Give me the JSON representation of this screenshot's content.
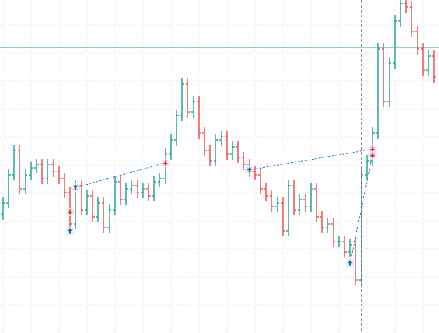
{
  "chart_data": {
    "type": "ohlc",
    "up_color": "#26a69a",
    "down_color": "#ef5350",
    "x": [
      0,
      1,
      2,
      3,
      4,
      5,
      6,
      7,
      8,
      9,
      10,
      11,
      12,
      13,
      14,
      15,
      16,
      17,
      18,
      19,
      20,
      21,
      22,
      23,
      24,
      25,
      26,
      27,
      28,
      29,
      30,
      31,
      32,
      33,
      34,
      35,
      36,
      37,
      38,
      39,
      40,
      41,
      42,
      43,
      44,
      45,
      46,
      47,
      48,
      49,
      50,
      51,
      52,
      53,
      54,
      55,
      56,
      57,
      58,
      59,
      60,
      61,
      62,
      63,
      64,
      65,
      66,
      67,
      68,
      69,
      70,
      71,
      72,
      73,
      74,
      75,
      76,
      77
    ],
    "open": [
      170,
      186,
      226,
      261,
      206,
      226,
      236,
      241,
      221,
      241,
      231,
      221,
      201,
      156,
      211,
      176,
      196,
      166,
      186,
      151,
      176,
      216,
      191,
      206,
      211,
      201,
      206,
      196,
      216,
      221,
      256,
      276,
      311,
      356,
      316,
      331,
      286,
      261,
      246,
      276,
      281,
      256,
      266,
      251,
      241,
      231,
      226,
      206,
      196,
      181,
      186,
      146,
      211,
      176,
      191,
      181,
      206,
      166,
      151,
      156,
      131,
      131,
      116,
      126,
      76,
      226,
      246,
      286,
      406,
      331,
      386,
      446,
      471,
      466,
      431,
      406,
      376,
      396
    ],
    "high": [
      194,
      234,
      269,
      269,
      234,
      244,
      249,
      249,
      249,
      249,
      239,
      229,
      209,
      219,
      219,
      204,
      204,
      194,
      194,
      184,
      224,
      224,
      214,
      219,
      219,
      214,
      214,
      224,
      229,
      264,
      284,
      319,
      364,
      364,
      339,
      339,
      294,
      269,
      284,
      289,
      289,
      274,
      274,
      259,
      249,
      239,
      234,
      214,
      204,
      194,
      194,
      219,
      219,
      199,
      199,
      214,
      214,
      174,
      164,
      164,
      139,
      139,
      134,
      134,
      234,
      254,
      294,
      414,
      414,
      394,
      454,
      476,
      476,
      474,
      439,
      414,
      404,
      404
    ],
    "low": [
      162,
      178,
      218,
      198,
      198,
      218,
      228,
      213,
      213,
      223,
      213,
      193,
      148,
      148,
      168,
      168,
      158,
      158,
      143,
      143,
      168,
      183,
      183,
      198,
      193,
      193,
      188,
      188,
      208,
      213,
      248,
      268,
      303,
      308,
      308,
      278,
      253,
      238,
      238,
      268,
      248,
      248,
      243,
      233,
      223,
      218,
      198,
      188,
      173,
      173,
      138,
      138,
      168,
      168,
      173,
      173,
      158,
      143,
      143,
      123,
      123,
      108,
      108,
      68,
      68,
      218,
      238,
      278,
      323,
      323,
      378,
      438,
      458,
      423,
      398,
      368,
      368,
      358
    ],
    "close": [
      186,
      226,
      261,
      206,
      226,
      236,
      241,
      221,
      241,
      231,
      221,
      201,
      156,
      211,
      176,
      196,
      166,
      186,
      151,
      176,
      216,
      191,
      206,
      211,
      201,
      206,
      196,
      216,
      221,
      256,
      276,
      311,
      356,
      316,
      331,
      286,
      261,
      246,
      276,
      281,
      256,
      266,
      251,
      241,
      231,
      226,
      206,
      196,
      181,
      186,
      146,
      211,
      176,
      191,
      181,
      206,
      166,
      151,
      156,
      131,
      131,
      116,
      126,
      76,
      226,
      246,
      286,
      406,
      331,
      386,
      446,
      471,
      466,
      431,
      406,
      376,
      396,
      366
    ],
    "xlim": [
      -0.5,
      77.5
    ],
    "ylim": [
      0,
      476
    ],
    "xticks": [
      0,
      5,
      10,
      15,
      20,
      25,
      30,
      35,
      40,
      45,
      50,
      55,
      60,
      65,
      70,
      75
    ],
    "yticks": [
      40,
      80,
      120,
      160,
      200,
      240,
      280,
      320,
      360,
      400,
      440
    ],
    "grid": true,
    "hline": {
      "value": 408,
      "color": "#26a69a"
    },
    "vline": {
      "x": 64
    },
    "trades": [
      {
        "x": [
          13,
          29
        ],
        "y": [
          208,
          243
        ]
      },
      {
        "x": [
          44,
          66
        ],
        "y": [
          233,
          263
        ]
      },
      {
        "x": [
          62,
          66
        ],
        "y": [
          100,
          254
        ]
      }
    ],
    "markers": [
      {
        "x": 12,
        "y": 173,
        "side": "sell"
      },
      {
        "x": 12,
        "y": 146,
        "side": "buy"
      },
      {
        "x": 13,
        "y": 208,
        "side": "buy"
      },
      {
        "x": 29,
        "y": 243,
        "side": "sell"
      },
      {
        "x": 44,
        "y": 233,
        "side": "buy"
      },
      {
        "x": 66,
        "y": 263,
        "side": "sell"
      },
      {
        "x": 66,
        "y": 254,
        "side": "sell"
      },
      {
        "x": 62,
        "y": 100,
        "side": "buy"
      }
    ],
    "buy_color": "#1565c0",
    "sell_color": "#e53935"
  }
}
